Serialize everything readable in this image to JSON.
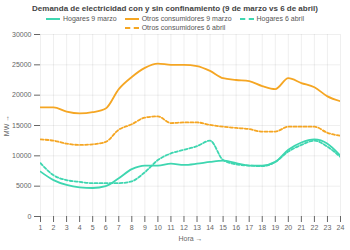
{
  "chart_data": {
    "type": "line",
    "title": "Demanda de electricidad con y sin confinamiento (9 de marzo vs 6 de abril)",
    "x_label": "Hora",
    "y_label": "MW",
    "x": [
      1,
      2,
      3,
      4,
      5,
      6,
      7,
      8,
      9,
      10,
      11,
      12,
      13,
      14,
      15,
      16,
      17,
      18,
      19,
      20,
      21,
      22,
      23,
      24
    ],
    "series": [
      {
        "name": "Hogares 9 marzo",
        "color": "#3ed6b0",
        "line_style": "solid",
        "values": [
          7400,
          6000,
          5200,
          4800,
          4700,
          5000,
          6300,
          7800,
          8400,
          8400,
          8700,
          8500,
          8700,
          9000,
          9200,
          8800,
          8400,
          8400,
          9000,
          11000,
          12200,
          12700,
          12000,
          10000
        ]
      },
      {
        "name": "Otros consumidores 9 marzo",
        "color": "#f5a623",
        "line_style": "solid",
        "values": [
          18000,
          18000,
          17300,
          17000,
          17200,
          17800,
          21000,
          23000,
          24500,
          25200,
          25000,
          25000,
          24800,
          24000,
          22800,
          22500,
          22300,
          21500,
          21000,
          22800,
          22000,
          21300,
          19800,
          19000
        ]
      },
      {
        "name": "Hogares 6 abril",
        "color": "#3ed6b0",
        "line_style": "dashed",
        "values": [
          8800,
          6800,
          6000,
          5700,
          5500,
          5500,
          5500,
          5800,
          7300,
          9300,
          10400,
          11000,
          11600,
          12500,
          9300,
          8600,
          8400,
          8300,
          9000,
          10700,
          11800,
          12500,
          11500,
          9800
        ]
      },
      {
        "name": "Otros consumidores 6 abril",
        "color": "#f5a623",
        "line_style": "dashed",
        "values": [
          12700,
          12500,
          12000,
          11800,
          11900,
          12300,
          14300,
          15200,
          16300,
          16500,
          15400,
          15500,
          15500,
          15100,
          14800,
          14600,
          14400,
          14000,
          14000,
          14800,
          14800,
          14800,
          13800,
          13300
        ]
      }
    ],
    "xlim": [
      1,
      24
    ],
    "xticks": [
      1,
      2,
      3,
      4,
      5,
      6,
      7,
      8,
      9,
      10,
      11,
      12,
      13,
      14,
      15,
      16,
      17,
      18,
      19,
      20,
      21,
      22,
      23,
      24
    ],
    "ylim": [
      0,
      30000
    ],
    "yticks": [
      0,
      5000,
      10000,
      15000,
      20000,
      25000,
      30000
    ],
    "grid": true,
    "legend": "top"
  }
}
